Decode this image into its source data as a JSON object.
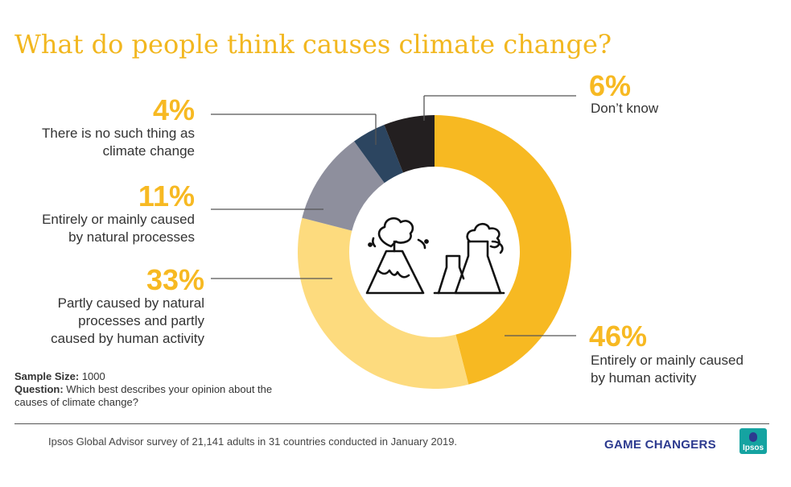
{
  "title": "What do people think causes climate change?",
  "chart_data": {
    "type": "pie",
    "style": "donut",
    "slices": [
      {
        "label": "Entirely or mainly caused by human activity",
        "value": 46,
        "value_label": "46%",
        "color": "#f7b922"
      },
      {
        "label": "Partly caused by natural processes and partly caused by human activity",
        "value": 33,
        "value_label": "33%",
        "color": "#fddb7e"
      },
      {
        "label": "Entirely or mainly caused by natural processes",
        "value": 11,
        "value_label": "11%",
        "color": "#8e8f9d"
      },
      {
        "label": "There is no such thing as climate change",
        "value": 4,
        "value_label": "4%",
        "color": "#2c4560"
      },
      {
        "label": "Don’t know",
        "value": 6,
        "value_label": "6%",
        "color": "#231f20"
      }
    ]
  },
  "labels": {
    "dont_know": {
      "pct": "6%",
      "lines": [
        "Don’t know"
      ]
    },
    "no_such": {
      "pct": "4%",
      "lines": [
        "There is no such thing as",
        "climate change"
      ]
    },
    "natural": {
      "pct": "11%",
      "lines": [
        "Entirely or mainly caused",
        "by natural processes"
      ]
    },
    "partly": {
      "pct": "33%",
      "lines": [
        "Partly caused by natural",
        "processes and partly",
        "caused by human activity"
      ]
    },
    "human": {
      "pct": "46%",
      "lines": [
        "Entirely or mainly caused",
        "by human activity"
      ]
    }
  },
  "meta": {
    "sample_label": "Sample Size:",
    "sample_value": "1000",
    "question_label": "Question:",
    "question_text": "Which best describes your opinion about the causes of climate change?"
  },
  "footer": "Ipsos Global Advisor survey of 21,141 adults in 31 countries conducted in January 2019.",
  "brand": "GAME CHANGERS",
  "logo_text": "Ipsos",
  "icons": [
    "volcano-icon",
    "factory-icon"
  ]
}
